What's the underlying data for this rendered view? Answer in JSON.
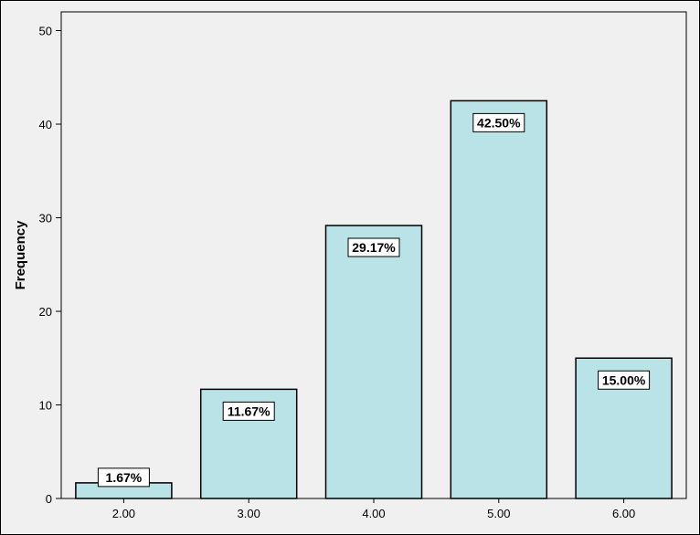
{
  "chart_data": {
    "type": "bar",
    "title": "",
    "xlabel": "",
    "ylabel": "Frequency",
    "categories": [
      "2.00",
      "3.00",
      "4.00",
      "5.00",
      "6.00"
    ],
    "values": [
      1.67,
      11.67,
      29.17,
      42.5,
      15.0
    ],
    "data_labels": [
      "1.67%",
      "11.67%",
      "29.17%",
      "42.50%",
      "15.00%"
    ],
    "yticks": [
      "0",
      "10",
      "20",
      "30",
      "40",
      "50"
    ],
    "ylim": [
      0,
      52
    ],
    "grid": false,
    "legend": "none",
    "colors": {
      "bar_fill": "#b9e3e6",
      "bar_stroke": "#000000",
      "plot_background": "#f0f0f0",
      "label_box_fill": "#ffffff"
    }
  }
}
